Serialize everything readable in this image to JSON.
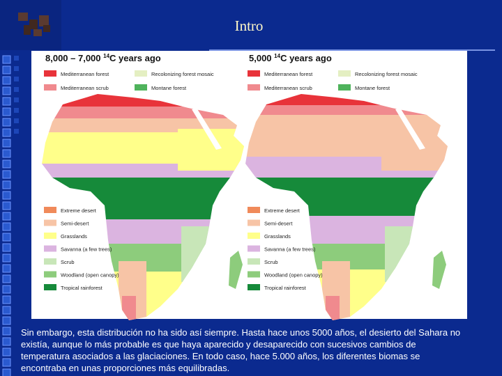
{
  "header": {
    "title": "Intro"
  },
  "maps": [
    {
      "title": {
        "before": "8,000 – 7,000 ",
        "sup": "14",
        "after": "C years ago"
      },
      "legend_top": [
        "Mediterranean forest",
        "Recolonizing forest mosaic",
        "Mediterranean scrub",
        "Montane forest"
      ],
      "legend_bottom": [
        "Extreme desert",
        "Semi-desert",
        "Grasslands",
        "Savanna (a few trees)",
        "Scrub",
        "Woodland (open canopy)",
        "Tropical rainforest"
      ]
    },
    {
      "title": {
        "before": "5,000 ",
        "sup": "14",
        "after": "C years ago"
      },
      "legend_top": [
        "Mediterranean forest",
        "Recolonizing forest mosaic",
        "Mediterranean scrub",
        "Montane forest"
      ],
      "legend_bottom": [
        "Extreme desert",
        "Semi-desert",
        "Grasslands",
        "Savanna (a few trees)",
        "Scrub",
        "Woodland (open canopy)",
        "Tropical rainforest"
      ]
    }
  ],
  "caption": {
    "lines": [
      "Sin embargo, esta distribución no ha sido así siempre. Hasta hace unos 5000 años, el desierto del Sahara no",
      "existía, aunque lo más probable es que haya aparecido y desaparecido con sucesivos cambios de",
      "temperatura asociados a las glaciaciones. En todo caso, hace 5.000 años, los diferentes biomas se",
      "encontraba en unas proporciones más equilibradas."
    ]
  }
}
